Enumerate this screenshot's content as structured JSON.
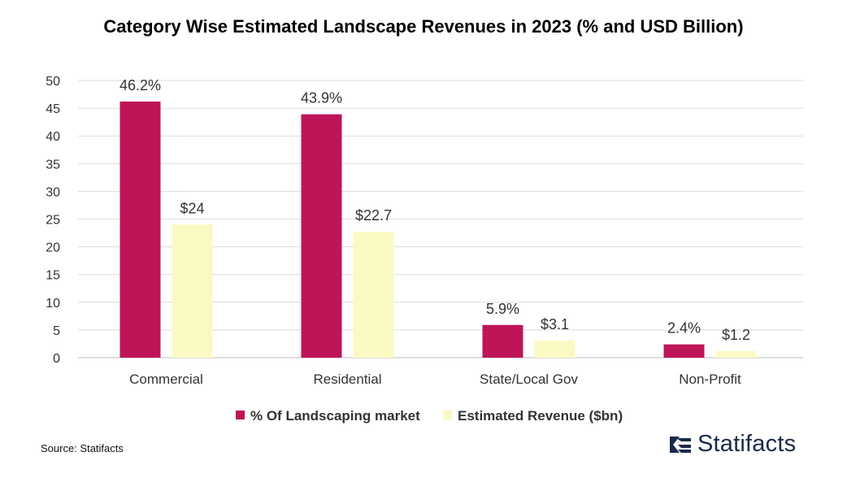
{
  "chart_data": {
    "type": "bar",
    "title": "Category Wise Estimated Landscape Revenues in 2023 (% and USD Billion)",
    "categories": [
      "Commercial",
      "Residential",
      "State/Local Gov",
      "Non-Profit"
    ],
    "series": [
      {
        "name": "% Of Landscaping market",
        "values": [
          46.2,
          43.9,
          5.9,
          2.4
        ],
        "labels": [
          "46.2%",
          "43.9%",
          "5.9%",
          "2.4%"
        ],
        "color": "#be1558"
      },
      {
        "name": "Estimated Revenue ($bn)",
        "values": [
          24,
          22.7,
          3.1,
          1.2
        ],
        "labels": [
          "$24",
          "$22.7",
          "$3.1",
          "$1.2"
        ],
        "color": "#fbf9c3"
      }
    ],
    "ylim": [
      0,
      50
    ],
    "yticks": [
      0,
      5,
      10,
      15,
      20,
      25,
      30,
      35,
      40,
      45,
      50
    ],
    "grid": true,
    "legend": "bottom-center",
    "xlabel": "",
    "ylabel": ""
  },
  "footer": {
    "source": "Source: Statifacts",
    "brand": "Statifacts",
    "brand_icon": "statifacts-logo-icon",
    "brand_color": "#1b2a4a"
  }
}
